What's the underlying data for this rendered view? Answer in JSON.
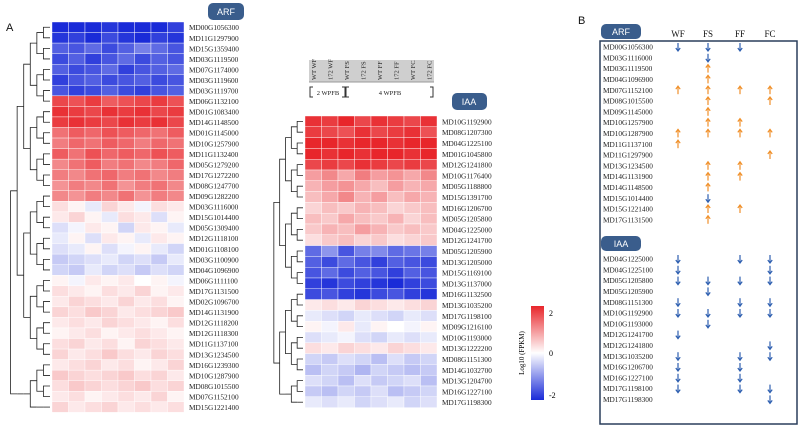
{
  "panel_a": "A",
  "panel_b": "B",
  "arf_label": "ARF",
  "iaa_label": "IAA",
  "stage_labels": [
    "2 WPFB",
    "4 WPFB"
  ],
  "column_labels": [
    "WT WF",
    "172 WF",
    "WT FS",
    "172 FS",
    "WT FF",
    "172 FF",
    "WT FC",
    "172 FC"
  ],
  "legend": {
    "title": "Log10 (FPKM)",
    "ticks": [
      "2",
      "0",
      "-2"
    ]
  },
  "colors": {
    "high": "#e8262b",
    "mid": "#ffffff",
    "low": "#1a2bd8",
    "up": "#f0902a",
    "down": "#2e5fb0",
    "pill": "#3a5d8c"
  },
  "chart_data": [
    {
      "type": "heatmap",
      "title": "ARF",
      "rows": [
        "MD00G1056300",
        "MD11G1297900",
        "MD15G1359400",
        "MD03G1119500",
        "MD07G1174000",
        "MD03G1119600",
        "MD03G1119700",
        "MD06G1132100",
        "MD01G1083400",
        "MD14G1148500",
        "MD01G1145000",
        "MD10G1257900",
        "MD11G1132400",
        "MD05G1279200",
        "MD17G1272200",
        "MD08G1247700",
        "MD09G1282200",
        "MD03G1116000",
        "MD15G1014400",
        "MD05G1309400",
        "MD12G1118100",
        "MD01G1108100",
        "MD03G1100900",
        "MD04G1096900",
        "MD06G1111100",
        "MD17G1131500",
        "MD02G1096700",
        "MD14G1131900",
        "MD12G1118200",
        "MD12G1118300",
        "MD11G1137100",
        "MD13G1234500",
        "MD16G1239300",
        "MD10G1287900",
        "MD08G1015500",
        "MD07G1152100",
        "MD15G1221400"
      ],
      "values": [
        [
          -2.0,
          -2.1,
          -2.0,
          -1.9,
          -2.0,
          -2.1,
          -2.0,
          -1.8
        ],
        [
          -1.9,
          -1.8,
          -2.0,
          -1.7,
          -1.9,
          -2.0,
          -1.8,
          -1.9
        ],
        [
          -1.5,
          -1.6,
          -1.4,
          -1.7,
          -1.5,
          -1.2,
          -1.4,
          -1.6
        ],
        [
          -1.7,
          -1.5,
          -1.8,
          -1.6,
          -1.4,
          -1.7,
          -1.5,
          -1.6
        ],
        [
          -1.5,
          -1.7,
          -1.6,
          -1.4,
          -1.8,
          -1.6,
          -1.5,
          -1.4
        ],
        [
          -1.8,
          -1.6,
          -1.5,
          -1.7,
          -1.6,
          -1.5,
          -1.7,
          -1.6
        ],
        [
          -1.6,
          -1.8,
          -1.7,
          -1.5,
          -1.7,
          -1.8,
          -1.6,
          -1.5
        ],
        [
          1.7,
          1.6,
          1.8,
          1.5,
          1.6,
          1.7,
          1.8,
          1.6
        ],
        [
          1.9,
          1.8,
          1.7,
          1.9,
          1.8,
          1.9,
          1.7,
          1.8
        ],
        [
          1.8,
          1.9,
          1.8,
          1.7,
          1.9,
          1.8,
          1.9,
          1.7
        ],
        [
          1.3,
          1.5,
          1.4,
          1.6,
          1.5,
          1.4,
          1.3,
          1.5
        ],
        [
          1.2,
          1.4,
          1.3,
          1.5,
          1.4,
          1.2,
          1.4,
          1.3
        ],
        [
          1.5,
          1.3,
          1.6,
          1.4,
          1.5,
          1.4,
          1.6,
          1.5
        ],
        [
          1.1,
          1.3,
          1.5,
          1.2,
          1.3,
          1.1,
          1.2,
          1.4
        ],
        [
          1.2,
          1.1,
          1.3,
          1.4,
          1.2,
          1.3,
          1.1,
          1.2
        ],
        [
          1.0,
          1.2,
          1.1,
          1.3,
          1.0,
          1.2,
          1.3,
          1.1
        ],
        [
          1.1,
          1.0,
          1.2,
          1.1,
          1.3,
          1.0,
          1.2,
          1.1
        ],
        [
          0.3,
          0.1,
          -0.2,
          0.4,
          0.2,
          -0.1,
          0.3,
          0.2
        ],
        [
          0.2,
          0.4,
          0.1,
          -0.2,
          0.3,
          0.2,
          -0.3,
          0.1
        ],
        [
          -0.3,
          -0.1,
          0.2,
          0.1,
          -0.4,
          0.2,
          0.1,
          -0.2
        ],
        [
          -0.2,
          0.1,
          -0.3,
          0.2,
          0.1,
          -0.2,
          0.2,
          0.1
        ],
        [
          -0.3,
          -0.2,
          0.1,
          -0.3,
          -0.1,
          0.1,
          -0.2,
          -0.4
        ],
        [
          -0.5,
          -0.4,
          -0.3,
          -0.2,
          -0.4,
          -0.3,
          -0.5,
          -0.2
        ],
        [
          -0.4,
          -0.5,
          -0.2,
          -0.4,
          -0.3,
          -0.5,
          -0.3,
          -0.4
        ],
        [
          0.1,
          -0.1,
          0.2,
          0.1,
          0.2,
          0.0,
          0.1,
          -0.1
        ],
        [
          0.3,
          0.2,
          0.1,
          0.3,
          0.2,
          0.4,
          0.1,
          0.2
        ],
        [
          0.2,
          0.4,
          0.3,
          0.2,
          0.4,
          0.2,
          0.3,
          0.1
        ],
        [
          0.4,
          0.3,
          0.5,
          0.4,
          0.2,
          0.3,
          0.4,
          0.5
        ],
        [
          0.2,
          0.3,
          0.2,
          0.4,
          0.3,
          0.2,
          0.1,
          0.3
        ],
        [
          0.1,
          0.2,
          0.3,
          0.1,
          0.2,
          0.3,
          0.2,
          0.1
        ],
        [
          0.3,
          0.4,
          0.2,
          0.3,
          0.1,
          0.4,
          0.3,
          0.2
        ],
        [
          0.4,
          0.2,
          0.3,
          0.5,
          0.3,
          0.2,
          0.4,
          0.3
        ],
        [
          0.2,
          0.3,
          0.4,
          0.2,
          0.3,
          0.1,
          0.2,
          0.4
        ],
        [
          0.5,
          0.4,
          0.3,
          0.4,
          0.5,
          0.3,
          0.4,
          0.2
        ],
        [
          0.3,
          0.5,
          0.4,
          0.3,
          0.4,
          0.5,
          0.3,
          0.4
        ],
        [
          0.2,
          0.3,
          0.1,
          0.2,
          0.3,
          0.2,
          0.4,
          0.1
        ],
        [
          0.4,
          0.2,
          0.3,
          0.4,
          0.2,
          0.3,
          0.2,
          0.3
        ]
      ],
      "range": [
        -2,
        2
      ]
    },
    {
      "type": "heatmap",
      "title": "IAA",
      "rows": [
        "MD10G1192900",
        "MD08G1207300",
        "MD04G1225100",
        "MD01G1045800",
        "MD12G1241800",
        "MD10G1176400",
        "MD05G1188800",
        "MD15G1391700",
        "MD16G1206700",
        "MD05G1205800",
        "MD04G1225000",
        "MD12G1241700",
        "MD05G1205900",
        "MD13G1205000",
        "MD15G1169100",
        "MD13G1137000",
        "MD16G1132500",
        "MD13G1035200",
        "MD17G1198100",
        "MD09G1216100",
        "MD10G1193000",
        "MD13G1222200",
        "MD08G1151300",
        "MD14G1032700",
        "MD13G1204700",
        "MD16G1227100",
        "MD17G1198300"
      ],
      "values": [
        [
          1.9,
          1.8,
          2.0,
          1.7,
          1.9,
          1.8,
          1.7,
          1.9
        ],
        [
          1.8,
          1.7,
          1.6,
          1.9,
          1.7,
          1.8,
          1.9,
          1.6
        ],
        [
          2.0,
          2.0,
          1.9,
          2.0,
          2.0,
          1.9,
          2.0,
          2.0
        ],
        [
          2.0,
          1.9,
          2.0,
          1.9,
          2.0,
          2.0,
          1.9,
          2.0
        ],
        [
          1.7,
          1.8,
          1.7,
          1.9,
          1.8,
          1.7,
          1.8,
          1.7
        ],
        [
          0.9,
          1.1,
          0.8,
          1.2,
          0.9,
          1.0,
          0.8,
          1.1
        ],
        [
          0.7,
          0.9,
          1.0,
          0.8,
          0.6,
          0.9,
          0.7,
          0.8
        ],
        [
          0.6,
          0.8,
          1.1,
          0.7,
          0.9,
          0.6,
          0.8,
          0.7
        ],
        [
          0.4,
          0.6,
          0.5,
          0.7,
          0.6,
          0.4,
          0.5,
          0.6
        ],
        [
          0.6,
          0.5,
          0.8,
          0.6,
          0.5,
          0.7,
          0.4,
          0.6
        ],
        [
          0.5,
          0.7,
          0.6,
          0.9,
          0.7,
          0.5,
          0.6,
          0.5
        ],
        [
          0.3,
          0.5,
          0.6,
          0.4,
          0.5,
          0.3,
          0.4,
          0.5
        ],
        [
          -1.4,
          -1.0,
          -1.6,
          -1.2,
          -1.1,
          -1.4,
          -1.3,
          -1.2
        ],
        [
          -1.5,
          -1.7,
          -1.4,
          -1.6,
          -1.8,
          -1.5,
          -1.6,
          -1.7
        ],
        [
          -1.6,
          -1.4,
          -1.7,
          -1.5,
          -1.6,
          -1.8,
          -1.5,
          -1.6
        ],
        [
          -1.8,
          -1.9,
          -1.7,
          -1.8,
          -1.9,
          -2.0,
          -1.8,
          -1.7
        ],
        [
          -1.7,
          -1.6,
          -1.8,
          -1.9,
          -1.7,
          -1.6,
          -1.8,
          -1.9
        ],
        [
          0.2,
          0.3,
          0.2,
          0.4,
          0.3,
          0.2,
          0.3,
          0.4
        ],
        [
          -0.2,
          -0.3,
          -0.4,
          -0.2,
          -0.3,
          -0.4,
          -0.2,
          -0.3
        ],
        [
          0.1,
          -0.1,
          0.2,
          -0.2,
          0.1,
          0.0,
          -0.1,
          0.1
        ],
        [
          -0.3,
          -0.2,
          -0.1,
          -0.3,
          -0.4,
          -0.2,
          -0.3,
          -0.2
        ],
        [
          0.3,
          0.2,
          0.4,
          0.3,
          0.2,
          0.4,
          0.3,
          0.2
        ],
        [
          -0.4,
          -0.5,
          -0.3,
          -0.4,
          -0.6,
          -0.3,
          -0.5,
          -0.4
        ],
        [
          -0.6,
          -0.4,
          -0.5,
          -0.7,
          -0.4,
          -0.5,
          -0.6,
          -0.5
        ],
        [
          -0.3,
          -0.4,
          -0.6,
          -0.3,
          -0.5,
          -0.4,
          -0.3,
          -0.6
        ],
        [
          -0.5,
          -0.6,
          -0.4,
          -0.5,
          -0.3,
          -0.6,
          -0.5,
          -0.4
        ],
        [
          -0.2,
          -0.3,
          -0.2,
          -0.4,
          -0.3,
          -0.2,
          -0.4,
          -0.3
        ]
      ],
      "range": [
        -2,
        2
      ]
    },
    {
      "type": "table",
      "title": "Panel B",
      "columns": [
        "WF",
        "FS",
        "FF",
        "FC"
      ],
      "sections": [
        {
          "label": "ARF",
          "rows": [
            {
              "gene": "MD00G1056300",
              "marks": [
                "down",
                "down",
                "down",
                ""
              ]
            },
            {
              "gene": "MD03G1116000",
              "marks": [
                "",
                "down",
                "",
                ""
              ]
            },
            {
              "gene": "MD03G1119500",
              "marks": [
                "",
                "up",
                "",
                ""
              ]
            },
            {
              "gene": "MD04G1096900",
              "marks": [
                "",
                "up",
                "",
                ""
              ]
            },
            {
              "gene": "MD07G1152100",
              "marks": [
                "up",
                "up",
                "up",
                "up"
              ]
            },
            {
              "gene": "MD08G1015500",
              "marks": [
                "",
                "up",
                "",
                "up"
              ]
            },
            {
              "gene": "MD09G1145000",
              "marks": [
                "",
                "up",
                "",
                ""
              ]
            },
            {
              "gene": "MD10G1257900",
              "marks": [
                "",
                "up",
                "up",
                ""
              ]
            },
            {
              "gene": "MD10G1287900",
              "marks": [
                "up",
                "up",
                "up",
                "up"
              ]
            },
            {
              "gene": "MD11G1137100",
              "marks": [
                "up",
                "",
                "",
                ""
              ]
            },
            {
              "gene": "MD11G1297900",
              "marks": [
                "",
                "",
                "",
                "up"
              ]
            },
            {
              "gene": "MD13G1234500",
              "marks": [
                "",
                "up",
                "up",
                ""
              ]
            },
            {
              "gene": "MD14G1131900",
              "marks": [
                "",
                "up",
                "up",
                ""
              ]
            },
            {
              "gene": "MD14G1148500",
              "marks": [
                "",
                "up",
                "",
                ""
              ]
            },
            {
              "gene": "MD15G1014400",
              "marks": [
                "",
                "down",
                "",
                ""
              ]
            },
            {
              "gene": "MD15G1221400",
              "marks": [
                "",
                "up",
                "up",
                ""
              ]
            },
            {
              "gene": "MD17G1131500",
              "marks": [
                "",
                "up",
                "",
                ""
              ]
            }
          ]
        },
        {
          "label": "IAA",
          "rows": [
            {
              "gene": "MD04G1225000",
              "marks": [
                "down",
                "",
                "down",
                "down"
              ]
            },
            {
              "gene": "MD04G1225100",
              "marks": [
                "down",
                "",
                "",
                "down"
              ]
            },
            {
              "gene": "MD05G1205800",
              "marks": [
                "down",
                "down",
                "down",
                "down"
              ]
            },
            {
              "gene": "MD05G1205900",
              "marks": [
                "",
                "down",
                "",
                ""
              ]
            },
            {
              "gene": "MD08G1151300",
              "marks": [
                "down",
                "",
                "down",
                "down"
              ]
            },
            {
              "gene": "MD10G1192900",
              "marks": [
                "down",
                "down",
                "down",
                "down"
              ]
            },
            {
              "gene": "MD10G1193000",
              "marks": [
                "",
                "down",
                "",
                ""
              ]
            },
            {
              "gene": "MD12G1241700",
              "marks": [
                "down",
                "",
                "",
                ""
              ]
            },
            {
              "gene": "MD12G1241800",
              "marks": [
                "",
                "",
                "",
                "down"
              ]
            },
            {
              "gene": "MD13G1035200",
              "marks": [
                "down",
                "",
                "down",
                "down"
              ]
            },
            {
              "gene": "MD16G1206700",
              "marks": [
                "down",
                "",
                "down",
                ""
              ]
            },
            {
              "gene": "MD16G1227100",
              "marks": [
                "down",
                "",
                "down",
                ""
              ]
            },
            {
              "gene": "MD17G1198100",
              "marks": [
                "down",
                "",
                "down",
                "down"
              ]
            },
            {
              "gene": "MD17G1198300",
              "marks": [
                "",
                "",
                "",
                "down"
              ]
            }
          ]
        }
      ]
    }
  ]
}
